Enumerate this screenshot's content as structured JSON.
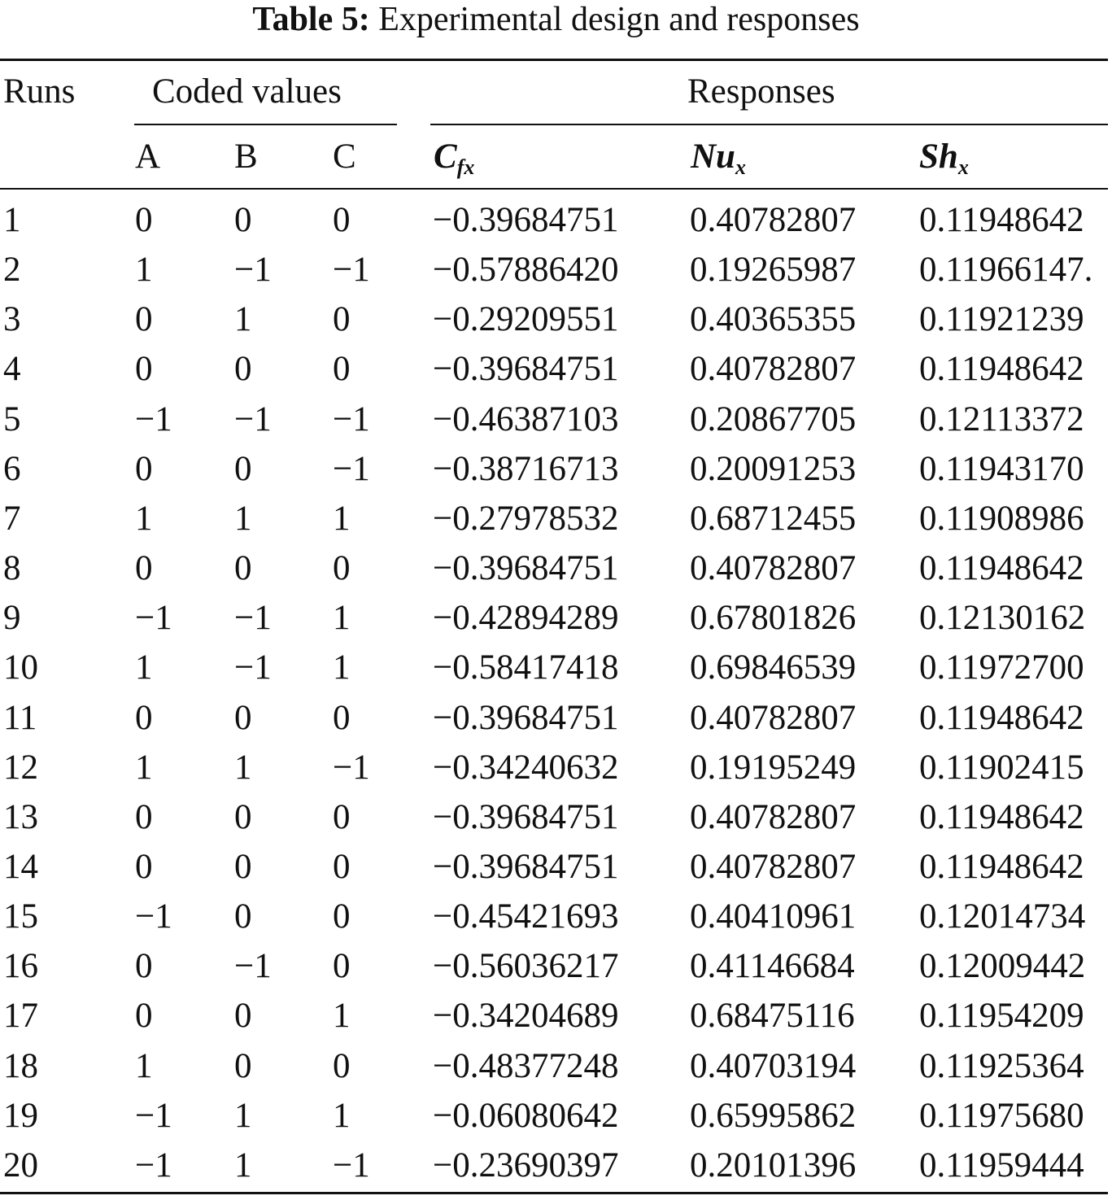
{
  "caption": {
    "label": "Table 5:",
    "text": "Experimental design and responses"
  },
  "header": {
    "runs": "Runs",
    "coded_group": "Coded values",
    "responses_group": "Responses",
    "coded_cols": [
      "A",
      "B",
      "C"
    ],
    "response_cols": [
      {
        "main": "C",
        "sub": "fx"
      },
      {
        "main": "Nu",
        "sub": "x"
      },
      {
        "main": "Sh",
        "sub": "x"
      }
    ]
  },
  "rows": [
    [
      "1",
      "0",
      "0",
      "0",
      "−0.39684751",
      "0.40782807",
      "0.11948642"
    ],
    [
      "2",
      "1",
      "−1",
      "−1",
      "−0.57886420",
      "0.19265987",
      "0.11966147."
    ],
    [
      "3",
      "0",
      "1",
      "0",
      "−0.29209551",
      "0.40365355",
      "0.11921239"
    ],
    [
      "4",
      "0",
      "0",
      "0",
      "−0.39684751",
      "0.40782807",
      "0.11948642"
    ],
    [
      "5",
      "−1",
      "−1",
      "−1",
      "−0.46387103",
      "0.20867705",
      "0.12113372"
    ],
    [
      "6",
      "0",
      "0",
      "−1",
      "−0.38716713",
      "0.20091253",
      "0.11943170"
    ],
    [
      "7",
      "1",
      "1",
      "1",
      "−0.27978532",
      "0.68712455",
      "0.11908986"
    ],
    [
      "8",
      "0",
      "0",
      "0",
      "−0.39684751",
      "0.40782807",
      "0.11948642"
    ],
    [
      "9",
      "−1",
      "−1",
      "1",
      "−0.42894289",
      "0.67801826",
      "0.12130162"
    ],
    [
      "10",
      "1",
      "−1",
      "1",
      "−0.58417418",
      "0.69846539",
      "0.11972700"
    ],
    [
      "11",
      "0",
      "0",
      "0",
      "−0.39684751",
      "0.40782807",
      "0.11948642"
    ],
    [
      "12",
      "1",
      "1",
      "−1",
      "−0.34240632",
      "0.19195249",
      "0.11902415"
    ],
    [
      "13",
      "0",
      "0",
      "0",
      "−0.39684751",
      "0.40782807",
      "0.11948642"
    ],
    [
      "14",
      "0",
      "0",
      "0",
      "−0.39684751",
      "0.40782807",
      "0.11948642"
    ],
    [
      "15",
      "−1",
      "0",
      "0",
      "−0.45421693",
      "0.40410961",
      "0.12014734"
    ],
    [
      "16",
      "0",
      "−1",
      "0",
      "−0.56036217",
      "0.41146684",
      "0.12009442"
    ],
    [
      "17",
      "0",
      "0",
      "1",
      "−0.34204689",
      "0.68475116",
      "0.11954209"
    ],
    [
      "18",
      "1",
      "0",
      "0",
      "−0.48377248",
      "0.40703194",
      "0.11925364"
    ],
    [
      "19",
      "−1",
      "1",
      "1",
      "−0.06080642",
      "0.65995862",
      "0.11975680"
    ],
    [
      "20",
      "−1",
      "1",
      "−1",
      "−0.23690397",
      "0.20101396",
      "0.11959444"
    ]
  ]
}
